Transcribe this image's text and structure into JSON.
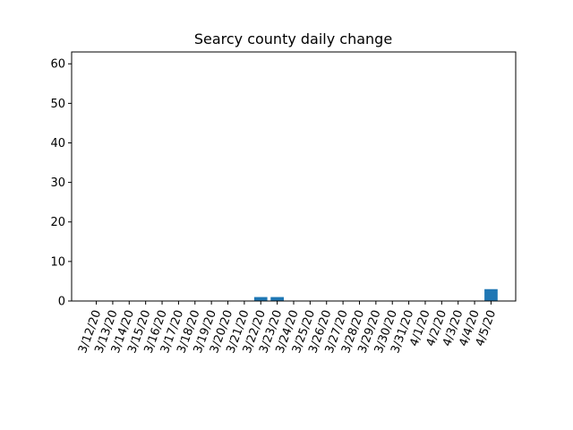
{
  "chart_data": {
    "type": "bar",
    "title": "Searcy county daily change",
    "xlabel": "",
    "ylabel": "",
    "categories": [
      "3/12/20",
      "3/13/20",
      "3/14/20",
      "3/15/20",
      "3/16/20",
      "3/17/20",
      "3/18/20",
      "3/19/20",
      "3/20/20",
      "3/21/20",
      "3/22/20",
      "3/23/20",
      "3/24/20",
      "3/25/20",
      "3/26/20",
      "3/27/20",
      "3/28/20",
      "3/29/20",
      "3/30/20",
      "3/31/20",
      "4/1/20",
      "4/2/20",
      "4/3/20",
      "4/4/20",
      "4/5/20"
    ],
    "values": [
      0,
      0,
      0,
      0,
      0,
      0,
      0,
      0,
      0,
      0,
      1,
      1,
      0,
      0,
      0,
      0,
      0,
      0,
      0,
      0,
      0,
      0,
      0,
      0,
      3
    ],
    "ylim": [
      0,
      63
    ],
    "yticks": [
      0,
      10,
      20,
      30,
      40,
      50,
      60
    ],
    "grid": false,
    "bar_color": "#1f77b4"
  }
}
